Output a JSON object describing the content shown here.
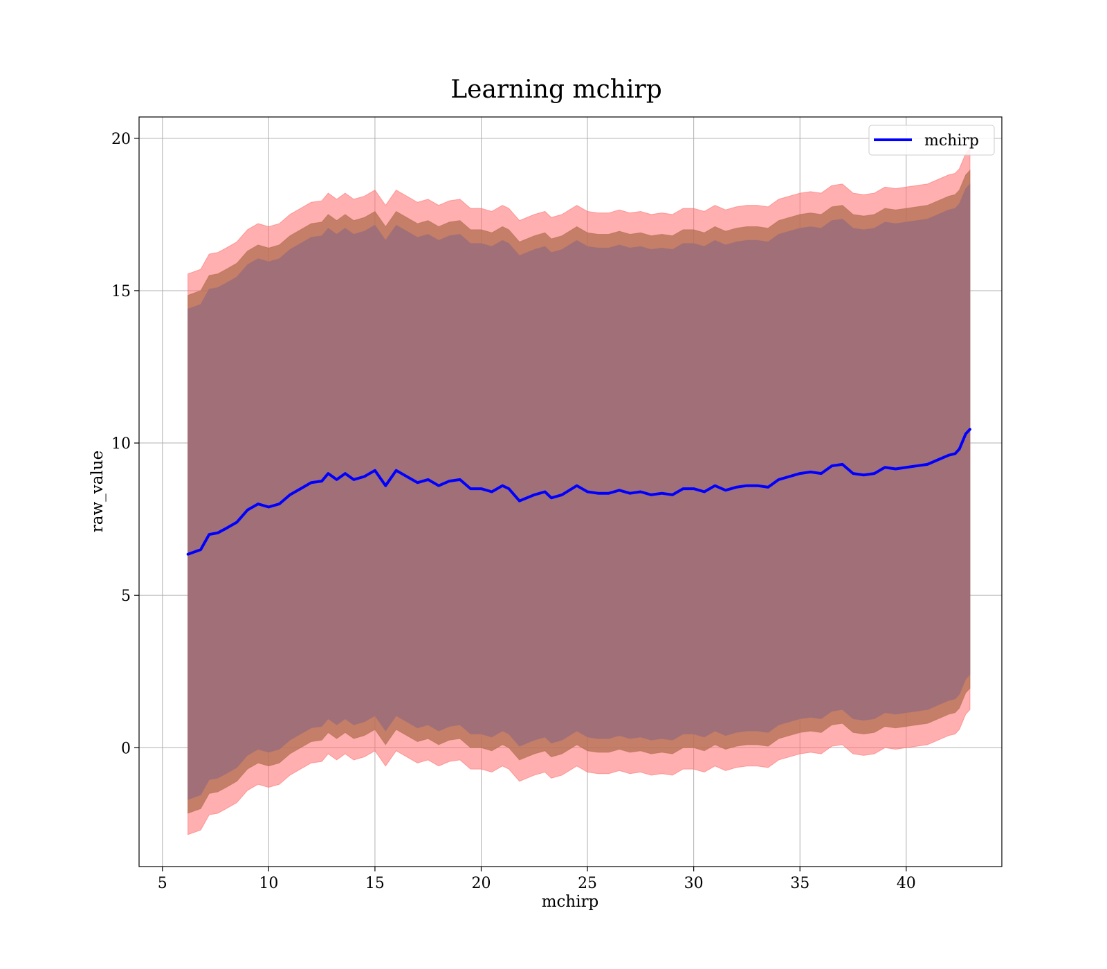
{
  "chart_data": {
    "type": "line",
    "title": "Learning mchirp",
    "xlabel": "mchirp",
    "ylabel": "raw_value",
    "xlim": [
      3.9,
      44.5
    ],
    "ylim": [
      -3.9,
      20.7
    ],
    "xticks": [
      5,
      10,
      15,
      20,
      25,
      30,
      35,
      40
    ],
    "yticks": [
      0,
      5,
      10,
      15,
      20
    ],
    "grid": true,
    "legend": {
      "position": "top-right",
      "entries": [
        "mchirp"
      ]
    },
    "colors": {
      "line": "#0000ff",
      "band_outer": "#ff6e6e",
      "band_middle": "#b26e50",
      "band_inner": "#a06f78"
    },
    "x": [
      6.2,
      6.8,
      7.2,
      7.6,
      8.0,
      8.5,
      9.0,
      9.5,
      10.0,
      10.5,
      11.0,
      11.5,
      12.0,
      12.5,
      12.8,
      13.2,
      13.6,
      14.0,
      14.5,
      15.0,
      15.2,
      15.5,
      16.0,
      16.5,
      17.0,
      17.5,
      18.0,
      18.5,
      19.0,
      19.5,
      20.0,
      20.5,
      21.0,
      21.3,
      21.8,
      22.5,
      23.0,
      23.3,
      23.8,
      24.5,
      25.0,
      25.5,
      26.0,
      26.5,
      27.0,
      27.5,
      28.0,
      28.5,
      29.0,
      29.5,
      30.0,
      30.5,
      31.0,
      31.5,
      32.0,
      32.5,
      33.0,
      33.5,
      34.0,
      34.5,
      35.0,
      35.5,
      36.0,
      36.5,
      37.0,
      37.5,
      38.0,
      38.5,
      39.0,
      39.5,
      40.0,
      40.5,
      41.0,
      41.5,
      42.0,
      42.3,
      42.5,
      42.8,
      43.0
    ],
    "series": [
      {
        "name": "mchirp",
        "values": [
          6.35,
          6.5,
          7.0,
          7.05,
          7.2,
          7.4,
          7.8,
          8.0,
          7.9,
          8.0,
          8.3,
          8.5,
          8.7,
          8.75,
          9.0,
          8.8,
          9.0,
          8.8,
          8.9,
          9.1,
          8.9,
          8.6,
          9.1,
          8.9,
          8.7,
          8.8,
          8.6,
          8.75,
          8.8,
          8.5,
          8.5,
          8.4,
          8.6,
          8.5,
          8.1,
          8.3,
          8.4,
          8.2,
          8.3,
          8.6,
          8.4,
          8.35,
          8.35,
          8.45,
          8.35,
          8.4,
          8.3,
          8.35,
          8.3,
          8.5,
          8.5,
          8.4,
          8.6,
          8.45,
          8.55,
          8.6,
          8.6,
          8.55,
          8.8,
          8.9,
          9.0,
          9.05,
          9.0,
          9.25,
          9.3,
          9.0,
          8.95,
          9.0,
          9.2,
          9.15,
          9.2,
          9.25,
          9.3,
          9.45,
          9.6,
          9.65,
          9.8,
          10.3,
          10.45
        ]
      }
    ],
    "bands": [
      {
        "name": "outer",
        "half_width": 9.2
      },
      {
        "name": "middle",
        "half_width": 8.5
      },
      {
        "name": "inner",
        "half_width": 8.05
      }
    ]
  }
}
